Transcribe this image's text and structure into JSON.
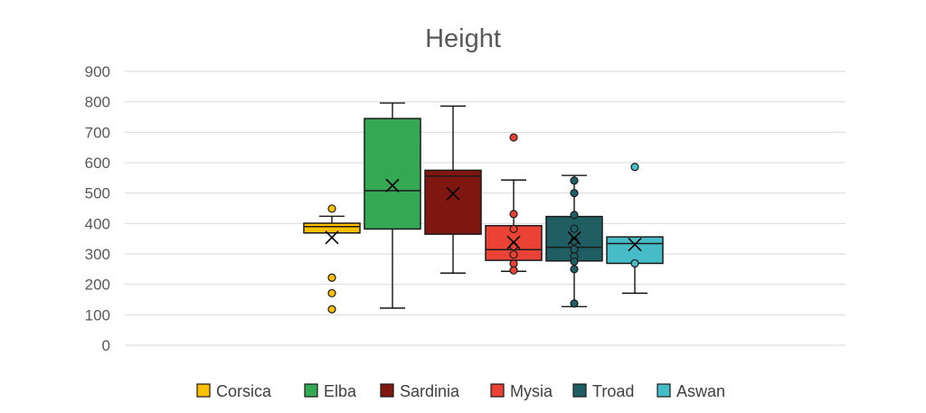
{
  "chart_data": {
    "type": "box",
    "title": "Height",
    "xlabel": "",
    "ylabel": "",
    "ylim": [
      0,
      900
    ],
    "yticks": [
      0,
      100,
      200,
      300,
      400,
      500,
      600,
      700,
      800,
      900
    ],
    "grid": true,
    "legend_position": "bottom",
    "series": [
      {
        "name": "Corsica",
        "color": "#FFC000",
        "whisker_low": 369,
        "q1": 369,
        "median": 390,
        "q3": 401,
        "whisker_high": 424,
        "mean": 354,
        "outliers": [
          449,
          222,
          171,
          118
        ],
        "inner_points": []
      },
      {
        "name": "Elba",
        "color": "#34A853",
        "whisker_low": 122,
        "q1": 382,
        "median": 508,
        "q3": 745,
        "whisker_high": 796,
        "mean": 525,
        "outliers": [],
        "inner_points": []
      },
      {
        "name": "Sardinia",
        "color": "#7F1710",
        "whisker_low": 237,
        "q1": 365,
        "median": 556,
        "q3": 575,
        "whisker_high": 786,
        "mean": 498,
        "outliers": [],
        "inner_points": []
      },
      {
        "name": "Mysia",
        "color": "#EA4335",
        "whisker_low": 243,
        "q1": 279,
        "median": 314,
        "q3": 393,
        "whisker_high": 543,
        "mean": 338,
        "outliers": [
          683
        ],
        "inner_points": [
          431,
          382,
          325,
          298,
          268,
          246
        ]
      },
      {
        "name": "Troad",
        "color": "#1F5E63",
        "whisker_low": 127,
        "q1": 277,
        "median": 322,
        "q3": 423,
        "whisker_high": 558,
        "mean": 352,
        "outliers": [],
        "inner_points": [
          541,
          500,
          428,
          383,
          342,
          315,
          292,
          275,
          250,
          137
        ]
      },
      {
        "name": "Aswan",
        "color": "#46BDC6",
        "whisker_low": 171,
        "q1": 269,
        "median": 334,
        "q3": 356,
        "whisker_high": 356,
        "mean": 331,
        "outliers": [
          586
        ],
        "inner_points": [
          269
        ]
      }
    ]
  }
}
